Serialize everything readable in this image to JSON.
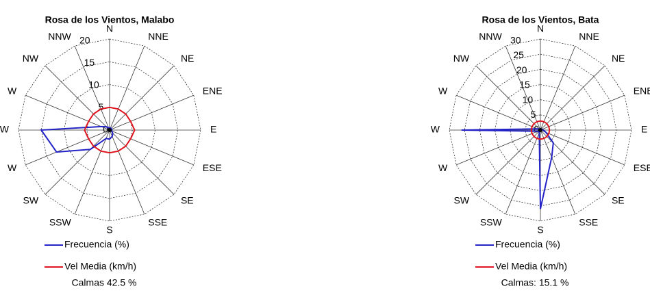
{
  "chart_data": [
    {
      "type": "radar",
      "title": "Rosa de los Vientos, Malabo",
      "categories": [
        "N",
        "NNE",
        "NE",
        "ENE",
        "E",
        "ESE",
        "SE",
        "SSE",
        "S",
        "SSW",
        "SW",
        "W",
        "W",
        "W",
        "NW",
        "NNW"
      ],
      "rlim": [
        0,
        20
      ],
      "rticks": [
        0,
        5,
        10,
        15,
        20
      ],
      "series": [
        {
          "name": "Frecuencia (%)",
          "color": "#2323c8",
          "values": [
            0.5,
            0.5,
            0.5,
            0.5,
            0.5,
            0.5,
            1,
            1.5,
            2,
            2,
            6,
            12.6,
            15,
            2,
            1,
            0.5
          ]
        },
        {
          "name": "Vel Media (km/h)",
          "color": "#e0141e",
          "values": [
            5,
            5,
            5,
            5,
            5.5,
            5,
            5,
            5,
            5,
            5,
            5,
            5,
            5.5,
            5,
            5,
            5
          ]
        }
      ],
      "note": "Calmas 42.5 %"
    },
    {
      "type": "radar",
      "title": "Rosa de los Vientos, Bata",
      "categories": [
        "N",
        "NNE",
        "NE",
        "ENE",
        "E",
        "ESE",
        "SE",
        "SSE",
        "S",
        "SSW",
        "SW",
        "W",
        "W",
        "W",
        "NW",
        "NNW"
      ],
      "rlim": [
        0,
        30
      ],
      "rticks": [
        0,
        5,
        10,
        15,
        20,
        25,
        30
      ],
      "series": [
        {
          "name": "Frecuencia (%)",
          "color": "#2323c8",
          "values": [
            0.5,
            0.5,
            0.5,
            0.5,
            1,
            2,
            6,
            9.7,
            26,
            1,
            0.5,
            1,
            26,
            1,
            0.5,
            0.5
          ]
        },
        {
          "name": "Vel Media (km/h)",
          "color": "#e0141e",
          "values": [
            3,
            3,
            3,
            3,
            3,
            3,
            3,
            3,
            3,
            3,
            3,
            3,
            3,
            3,
            3,
            3
          ]
        }
      ],
      "note": "Calmas: 15.1 %"
    }
  ]
}
